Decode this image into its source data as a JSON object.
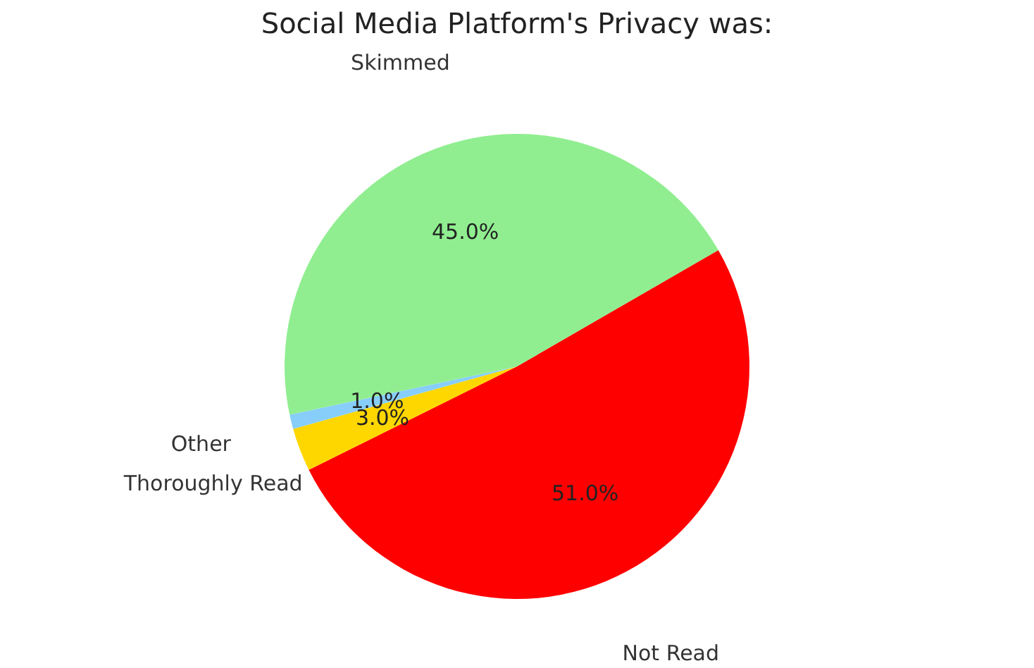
{
  "chart_data": {
    "type": "pie",
    "title": "Social Media Platform's Privacy was:",
    "categories": [
      "Not Read",
      "Thoroughly Read",
      "Other",
      "Skimmed"
    ],
    "values": [
      51,
      3,
      1,
      45
    ],
    "value_labels": [
      "51.0%",
      "3.0%",
      "1.0%",
      "45.0%"
    ],
    "colors": [
      "#ff0000",
      "#ffd700",
      "#87cefa",
      "#90ee90"
    ],
    "legend": false
  }
}
